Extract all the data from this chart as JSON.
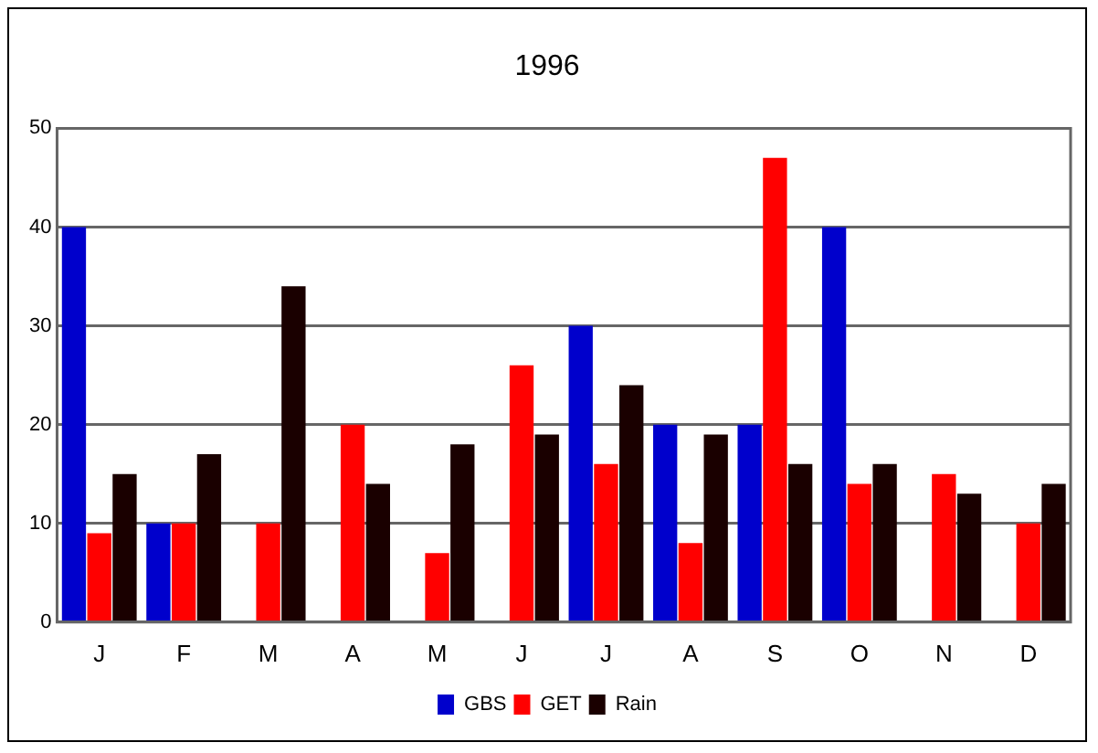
{
  "chart_data": {
    "type": "bar",
    "title": "1996",
    "categories": [
      "J",
      "F",
      "M",
      "A",
      "M",
      "J",
      "J",
      "A",
      "S",
      "O",
      "N",
      "D"
    ],
    "series": [
      {
        "name": "GBS",
        "color": "#0000cc",
        "values": [
          40,
          10,
          null,
          null,
          null,
          null,
          30,
          20,
          20,
          40,
          null,
          null
        ]
      },
      {
        "name": "GET",
        "color": "#ff0000",
        "values": [
          9,
          10,
          10,
          20,
          7,
          26,
          16,
          8,
          47,
          14,
          15,
          10
        ]
      },
      {
        "name": "Rain",
        "color": "#1a0000",
        "values": [
          15,
          17,
          34,
          14,
          18,
          19,
          24,
          19,
          16,
          16,
          13,
          14
        ]
      }
    ],
    "ylim": [
      0,
      50
    ],
    "yticks": [
      0,
      10,
      20,
      30,
      40,
      50
    ],
    "grid": "y",
    "legend": "bottom"
  }
}
